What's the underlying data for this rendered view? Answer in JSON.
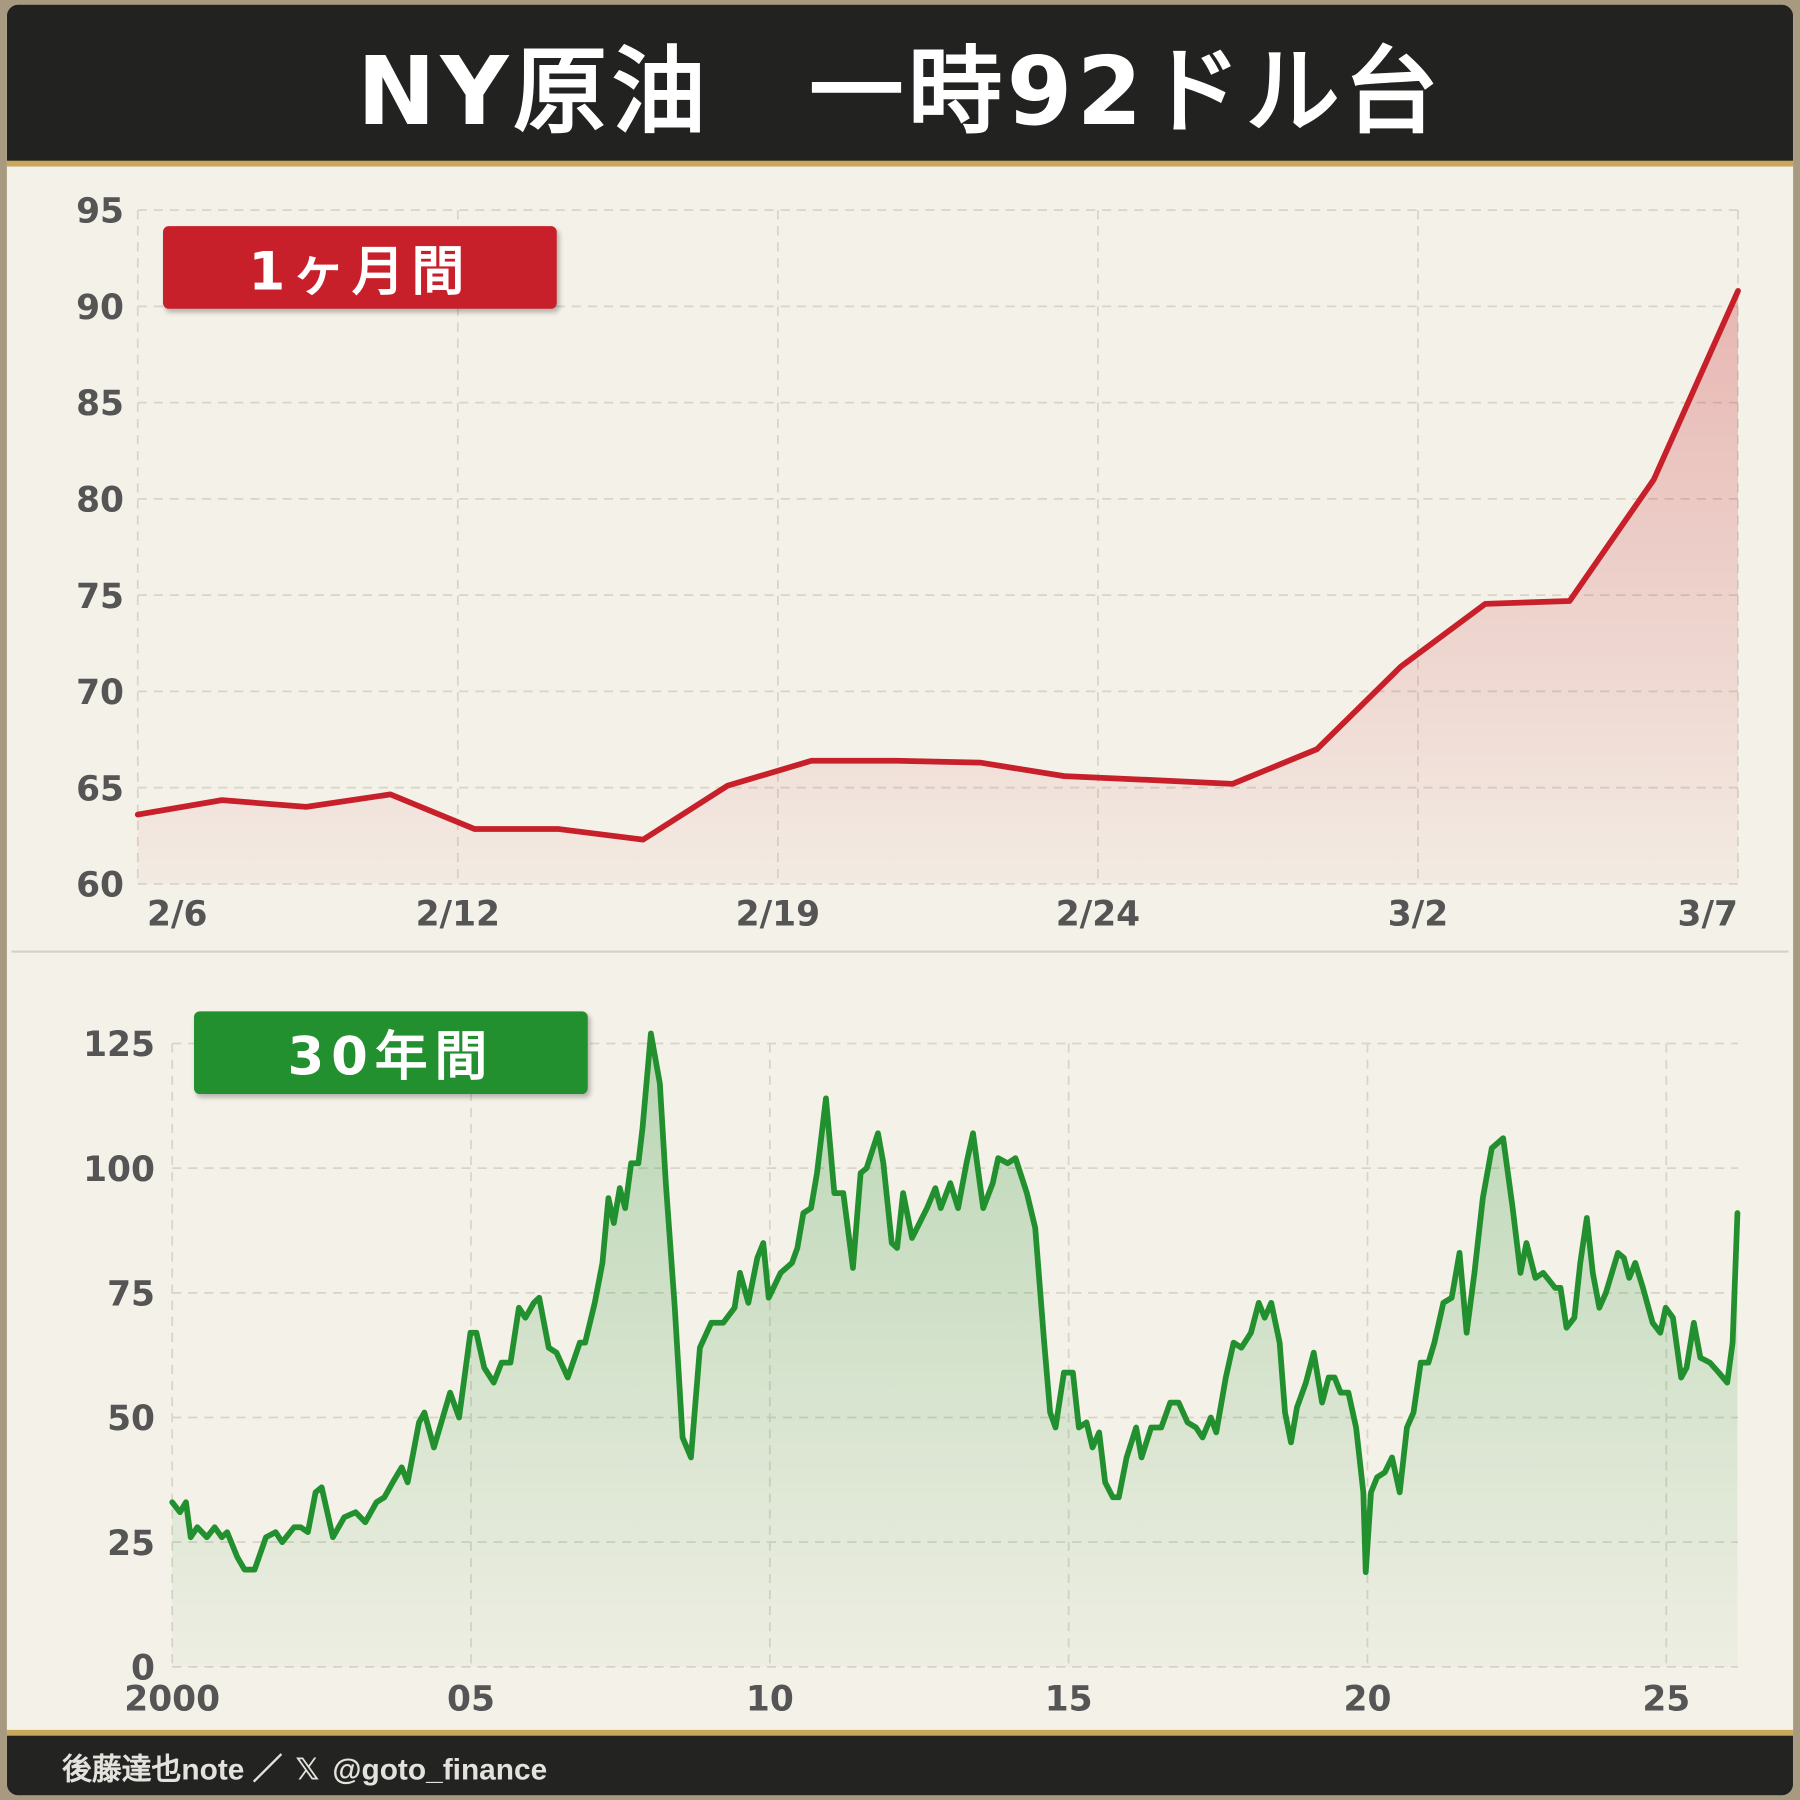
{
  "title": "NY原油　一時92ドル台",
  "footer": {
    "author": "後藤達也note ／",
    "x_icon": "x-logo-icon",
    "x_glyph": "𝕏",
    "handle": "@goto_finance"
  },
  "colors": {
    "red": "#c8202a",
    "green": "#23902f",
    "header": "#222220",
    "gold": "#c9a85a",
    "background": "#f4f1e8"
  },
  "chart_data": [
    {
      "type": "area",
      "badge": "1ヶ月間",
      "ylim": [
        60,
        95
      ],
      "yticks": [
        60,
        65,
        70,
        75,
        80,
        85,
        90,
        95
      ],
      "xticks": [
        "2/6",
        "2/12",
        "2/19",
        "2/24",
        "3/2",
        "3/7"
      ],
      "grid": true,
      "color": "#c8202a",
      "values": [
        63.6,
        64.35,
        64.0,
        64.65,
        62.85,
        62.85,
        62.3,
        65.1,
        66.4,
        66.4,
        66.3,
        65.6,
        65.4,
        65.2,
        67.0,
        71.3,
        74.55,
        74.7,
        81.0,
        90.8
      ]
    },
    {
      "type": "area",
      "badge": "30年間",
      "ylim": [
        0,
        125
      ],
      "yticks": [
        0,
        25,
        50,
        75,
        100,
        125
      ],
      "xlim": [
        2000,
        2026.2
      ],
      "xticks": [
        {
          "v": 2000,
          "label": "2000"
        },
        {
          "v": 2005,
          "label": "05"
        },
        {
          "v": 2010,
          "label": "10"
        },
        {
          "v": 2015,
          "label": "15"
        },
        {
          "v": 2020,
          "label": "20"
        },
        {
          "v": 2025,
          "label": "25"
        }
      ],
      "grid": true,
      "color": "#23902f",
      "points": [
        [
          2000.0,
          33
        ],
        [
          2000.13,
          31
        ],
        [
          2000.23,
          33
        ],
        [
          2000.31,
          26
        ],
        [
          2000.42,
          28
        ],
        [
          2000.58,
          26
        ],
        [
          2000.71,
          28
        ],
        [
          2000.83,
          26
        ],
        [
          2000.92,
          27
        ],
        [
          2001.09,
          22
        ],
        [
          2001.21,
          19.5
        ],
        [
          2001.38,
          19.5
        ],
        [
          2001.57,
          26
        ],
        [
          2001.73,
          27
        ],
        [
          2001.84,
          25
        ],
        [
          2002.04,
          28
        ],
        [
          2002.15,
          28
        ],
        [
          2002.27,
          27
        ],
        [
          2002.4,
          35
        ],
        [
          2002.5,
          36
        ],
        [
          2002.69,
          26
        ],
        [
          2002.88,
          30
        ],
        [
          2003.07,
          31
        ],
        [
          2003.23,
          29
        ],
        [
          2003.42,
          33
        ],
        [
          2003.55,
          34
        ],
        [
          2003.69,
          37
        ],
        [
          2003.84,
          40
        ],
        [
          2003.94,
          37
        ],
        [
          2004.13,
          49
        ],
        [
          2004.22,
          51
        ],
        [
          2004.38,
          44
        ],
        [
          2004.65,
          55
        ],
        [
          2004.8,
          50
        ],
        [
          2004.99,
          67
        ],
        [
          2005.09,
          67
        ],
        [
          2005.22,
          60
        ],
        [
          2005.38,
          57
        ],
        [
          2005.51,
          61
        ],
        [
          2005.66,
          61
        ],
        [
          2005.8,
          72
        ],
        [
          2005.91,
          70
        ],
        [
          2006.05,
          73
        ],
        [
          2006.14,
          74
        ],
        [
          2006.3,
          64
        ],
        [
          2006.43,
          63
        ],
        [
          2006.62,
          58
        ],
        [
          2006.82,
          65
        ],
        [
          2006.91,
          65
        ],
        [
          2007.07,
          73
        ],
        [
          2007.2,
          81
        ],
        [
          2007.3,
          94
        ],
        [
          2007.39,
          89
        ],
        [
          2007.49,
          96
        ],
        [
          2007.58,
          92
        ],
        [
          2007.68,
          101
        ],
        [
          2007.8,
          101
        ],
        [
          2007.87,
          108
        ],
        [
          2008.01,
          127
        ],
        [
          2008.16,
          117
        ],
        [
          2008.26,
          97
        ],
        [
          2008.41,
          72
        ],
        [
          2008.54,
          46
        ],
        [
          2008.68,
          42
        ],
        [
          2008.83,
          64
        ],
        [
          2009.02,
          69
        ],
        [
          2009.22,
          69
        ],
        [
          2009.41,
          72
        ],
        [
          2009.5,
          79
        ],
        [
          2009.64,
          73
        ],
        [
          2009.79,
          82
        ],
        [
          2009.89,
          85
        ],
        [
          2009.98,
          74
        ],
        [
          2010.18,
          79
        ],
        [
          2010.37,
          81
        ],
        [
          2010.46,
          84
        ],
        [
          2010.56,
          91
        ],
        [
          2010.69,
          92
        ],
        [
          2010.79,
          99
        ],
        [
          2010.94,
          114
        ],
        [
          2011.08,
          95
        ],
        [
          2011.23,
          95
        ],
        [
          2011.39,
          80
        ],
        [
          2011.52,
          99
        ],
        [
          2011.62,
          100
        ],
        [
          2011.81,
          107
        ],
        [
          2011.9,
          101
        ],
        [
          2012.04,
          85
        ],
        [
          2012.13,
          84
        ],
        [
          2012.23,
          95
        ],
        [
          2012.38,
          86
        ],
        [
          2012.63,
          92
        ],
        [
          2012.77,
          96
        ],
        [
          2012.86,
          92
        ],
        [
          2013.02,
          97
        ],
        [
          2013.15,
          92
        ],
        [
          2013.29,
          101
        ],
        [
          2013.4,
          107
        ],
        [
          2013.57,
          92
        ],
        [
          2013.73,
          97
        ],
        [
          2013.82,
          102
        ],
        [
          2013.98,
          101
        ],
        [
          2014.11,
          102
        ],
        [
          2014.3,
          95
        ],
        [
          2014.44,
          88
        ],
        [
          2014.59,
          65
        ],
        [
          2014.69,
          51
        ],
        [
          2014.78,
          48
        ],
        [
          2014.92,
          59
        ],
        [
          2015.07,
          59
        ],
        [
          2015.17,
          48
        ],
        [
          2015.3,
          49
        ],
        [
          2015.4,
          44
        ],
        [
          2015.51,
          47
        ],
        [
          2015.61,
          37
        ],
        [
          2015.74,
          34
        ],
        [
          2015.84,
          34
        ],
        [
          2015.97,
          42
        ],
        [
          2016.13,
          48
        ],
        [
          2016.22,
          42
        ],
        [
          2016.38,
          48
        ],
        [
          2016.55,
          48
        ],
        [
          2016.7,
          53
        ],
        [
          2016.84,
          53
        ],
        [
          2016.99,
          49
        ],
        [
          2017.13,
          48
        ],
        [
          2017.24,
          46
        ],
        [
          2017.38,
          50
        ],
        [
          2017.47,
          47
        ],
        [
          2017.63,
          58
        ],
        [
          2017.76,
          65
        ],
        [
          2017.89,
          64
        ],
        [
          2018.05,
          67
        ],
        [
          2018.18,
          73
        ],
        [
          2018.28,
          70
        ],
        [
          2018.39,
          73
        ],
        [
          2018.53,
          65
        ],
        [
          2018.62,
          51
        ],
        [
          2018.72,
          45
        ],
        [
          2018.82,
          52
        ],
        [
          2018.97,
          57
        ],
        [
          2019.1,
          63
        ],
        [
          2019.24,
          53
        ],
        [
          2019.35,
          58
        ],
        [
          2019.45,
          58
        ],
        [
          2019.55,
          55
        ],
        [
          2019.68,
          55
        ],
        [
          2019.81,
          48
        ],
        [
          2019.93,
          35
        ],
        [
          2019.97,
          19
        ],
        [
          2020.06,
          35
        ],
        [
          2020.16,
          38
        ],
        [
          2020.29,
          39
        ],
        [
          2020.41,
          42
        ],
        [
          2020.54,
          35
        ],
        [
          2020.66,
          48
        ],
        [
          2020.77,
          51
        ],
        [
          2020.89,
          61
        ],
        [
          2021.02,
          61
        ],
        [
          2021.12,
          65
        ],
        [
          2021.27,
          73
        ],
        [
          2021.41,
          74
        ],
        [
          2021.54,
          83
        ],
        [
          2021.66,
          67
        ],
        [
          2021.79,
          79
        ],
        [
          2021.93,
          94
        ],
        [
          2022.08,
          104
        ],
        [
          2022.27,
          106
        ],
        [
          2022.43,
          92
        ],
        [
          2022.56,
          79
        ],
        [
          2022.66,
          85
        ],
        [
          2022.81,
          78
        ],
        [
          2022.94,
          79
        ],
        [
          2023.14,
          76
        ],
        [
          2023.23,
          76
        ],
        [
          2023.33,
          68
        ],
        [
          2023.46,
          70
        ],
        [
          2023.56,
          81
        ],
        [
          2023.67,
          90
        ],
        [
          2023.77,
          79
        ],
        [
          2023.88,
          72
        ],
        [
          2023.99,
          75
        ],
        [
          2024.19,
          83
        ],
        [
          2024.29,
          82
        ],
        [
          2024.38,
          78
        ],
        [
          2024.48,
          81
        ],
        [
          2024.61,
          76
        ],
        [
          2024.77,
          69
        ],
        [
          2024.9,
          67
        ],
        [
          2024.99,
          72
        ],
        [
          2025.11,
          70
        ],
        [
          2025.25,
          58
        ],
        [
          2025.34,
          60
        ],
        [
          2025.46,
          69
        ],
        [
          2025.57,
          62
        ],
        [
          2025.73,
          61
        ],
        [
          2025.88,
          59
        ],
        [
          2026.02,
          57
        ],
        [
          2026.11,
          65
        ],
        [
          2026.19,
          91
        ]
      ]
    }
  ]
}
